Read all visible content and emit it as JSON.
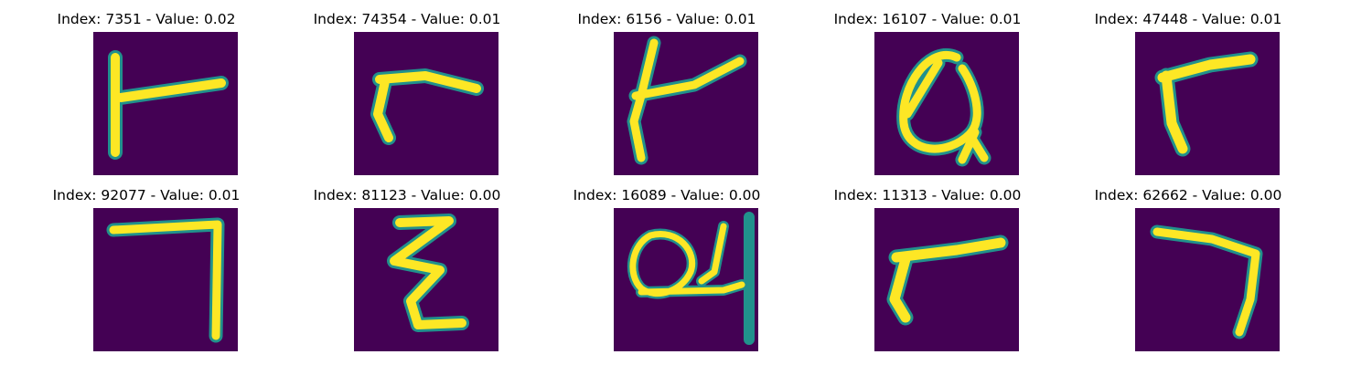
{
  "figure": {
    "panels": [
      {
        "title": "Index: 7351 - Value: 0.02",
        "glyph": "glyph-a"
      },
      {
        "title": "Index: 74354 - Value: 0.01",
        "glyph": "glyph-b"
      },
      {
        "title": "Index: 6156 - Value: 0.01",
        "glyph": "glyph-c"
      },
      {
        "title": "Index: 16107 - Value: 0.01",
        "glyph": "glyph-d"
      },
      {
        "title": "Index: 47448 - Value: 0.01",
        "glyph": "glyph-e"
      },
      {
        "title": "Index: 92077 - Value: 0.01",
        "glyph": "glyph-f"
      },
      {
        "title": "Index: 81123 - Value: 0.00",
        "glyph": "glyph-g"
      },
      {
        "title": "Index: 16089 - Value: 0.00",
        "glyph": "glyph-h"
      },
      {
        "title": "Index: 11313 - Value: 0.00",
        "glyph": "glyph-i"
      },
      {
        "title": "Index: 62662 - Value: 0.00",
        "glyph": "glyph-j"
      }
    ],
    "colors": {
      "background": "#440154",
      "stroke_edge": "#21918c",
      "stroke_core": "#fde725"
    }
  }
}
